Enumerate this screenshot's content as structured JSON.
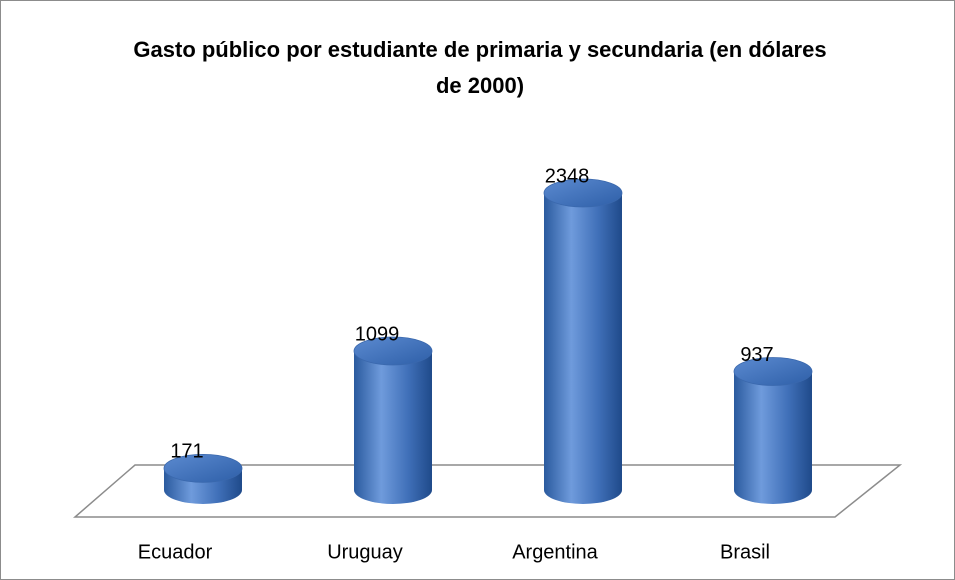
{
  "chart_data": {
    "type": "bar3d",
    "title": "Gasto público por estudiante de primaria y secundaria (en dólares de 2000)",
    "categories": [
      "Ecuador",
      "Uruguay",
      "Argentina",
      "Brasil"
    ],
    "values": [
      171,
      1099,
      2348,
      937
    ],
    "color": "#4a7cc4"
  }
}
